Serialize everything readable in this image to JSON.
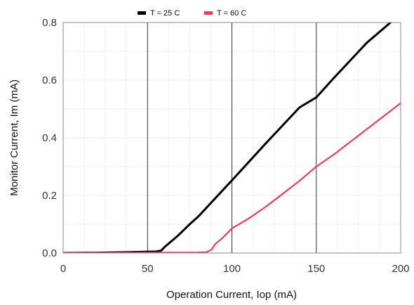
{
  "chart_data": {
    "type": "line",
    "title": "",
    "xlabel": "Operation Current, Iop (mA)",
    "ylabel": "Monitor Current, Im (mA)",
    "xlim": [
      0,
      200
    ],
    "ylim": [
      0,
      0.8
    ],
    "x_ticks": [
      "0",
      "50",
      "100",
      "150",
      "200"
    ],
    "y_ticks": [
      "0.0",
      "0.2",
      "0.4",
      "0.6",
      "0.8"
    ],
    "x_tick_values": [
      0,
      50,
      100,
      150,
      200
    ],
    "y_tick_values": [
      0,
      0.2,
      0.4,
      0.6,
      0.8
    ],
    "grid": true,
    "legend_position": "top-center",
    "series": [
      {
        "name": "T = 25 C",
        "color": "#000000",
        "points": [
          [
            0,
            0.0
          ],
          [
            20,
            0.001
          ],
          [
            40,
            0.003
          ],
          [
            55,
            0.005
          ],
          [
            58,
            0.008
          ],
          [
            60,
            0.02
          ],
          [
            63,
            0.035
          ],
          [
            68,
            0.06
          ],
          [
            75,
            0.1
          ],
          [
            80,
            0.126
          ],
          [
            100,
            0.252
          ],
          [
            120,
            0.38
          ],
          [
            140,
            0.505
          ],
          [
            150,
            0.54
          ],
          [
            160,
            0.605
          ],
          [
            180,
            0.73
          ],
          [
            198,
            0.82
          ]
        ]
      },
      {
        "name": "T = 60 C",
        "color": "#ee3a5a",
        "points": [
          [
            0,
            0.0
          ],
          [
            40,
            0.001
          ],
          [
            80,
            0.002
          ],
          [
            85,
            0.003
          ],
          [
            88,
            0.012
          ],
          [
            90,
            0.03
          ],
          [
            95,
            0.055
          ],
          [
            100,
            0.085
          ],
          [
            110,
            0.12
          ],
          [
            120,
            0.16
          ],
          [
            140,
            0.25
          ],
          [
            150,
            0.3
          ],
          [
            160,
            0.34
          ],
          [
            180,
            0.43
          ],
          [
            200,
            0.52
          ]
        ]
      }
    ],
    "emphasized_x_gridlines": [
      50,
      100,
      150
    ]
  }
}
